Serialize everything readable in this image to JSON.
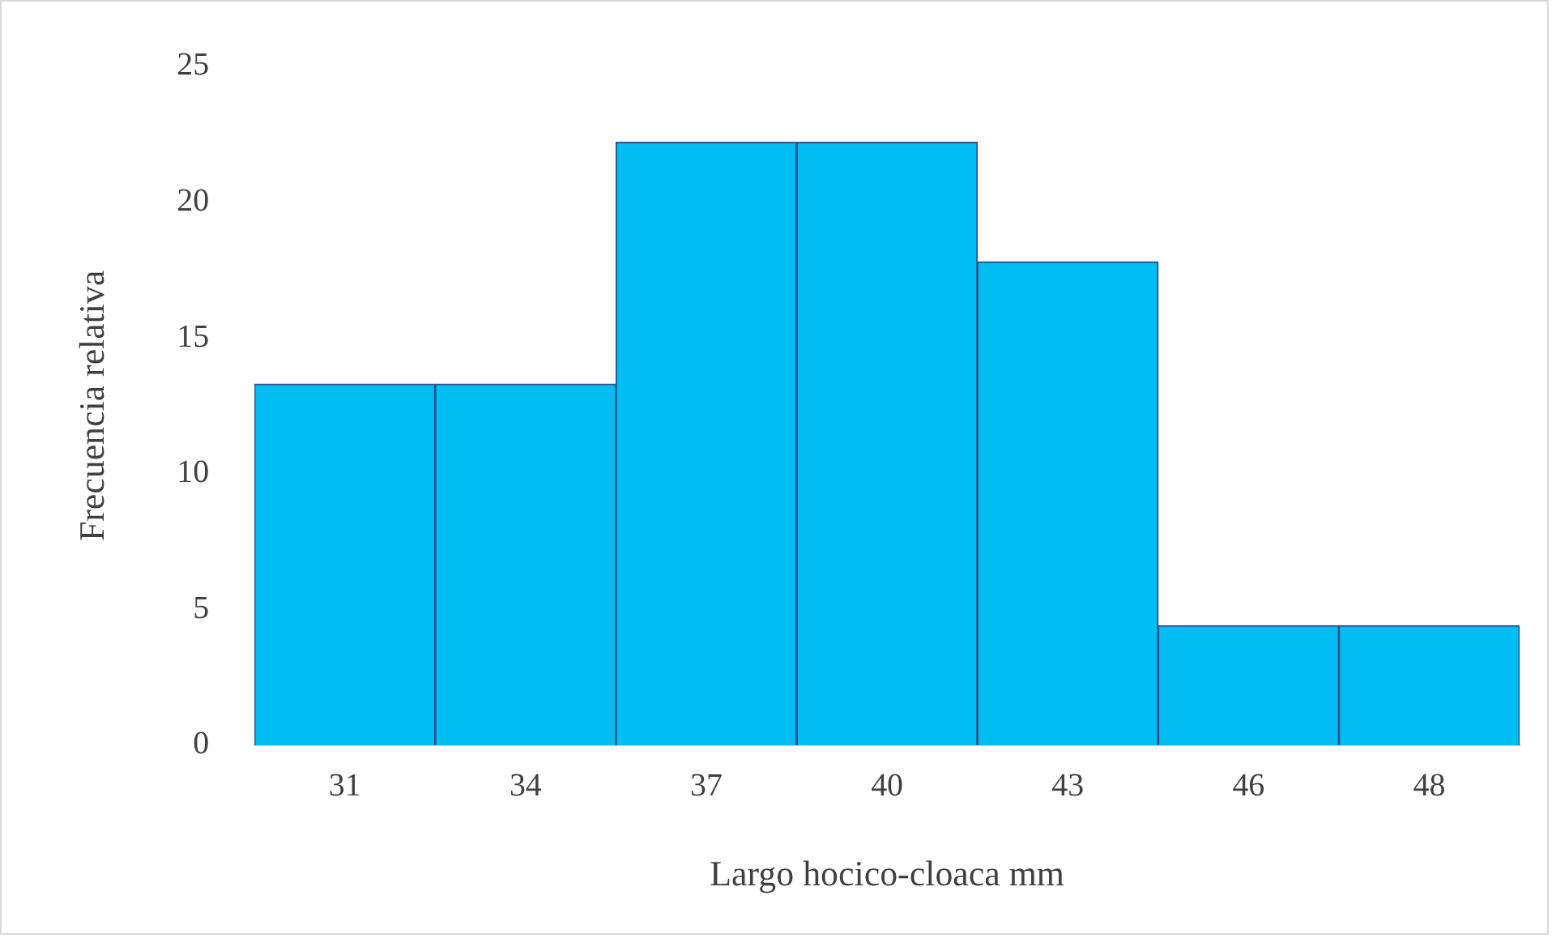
{
  "chart_data": {
    "type": "bar",
    "xlabel": "Largo hocico-cloaca mm",
    "ylabel": "Frecuencia relativa",
    "categories": [
      "31",
      "34",
      "37",
      "40",
      "43",
      "46",
      "48"
    ],
    "values": [
      13.3,
      13.3,
      22.2,
      22.2,
      17.8,
      4.4,
      4.4
    ],
    "color": "#00bef2",
    "ylim": [
      0,
      25
    ],
    "yticks": [
      0,
      5,
      10,
      15,
      20,
      25
    ],
    "grid": false,
    "legend": false
  }
}
